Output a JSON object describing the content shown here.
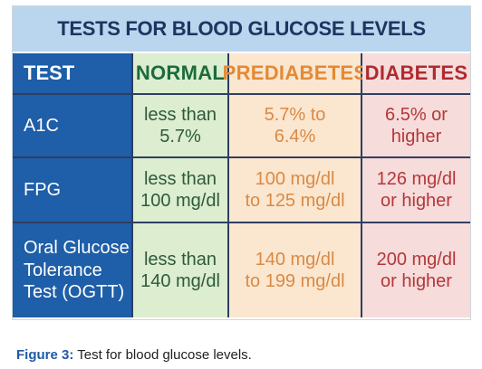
{
  "table": {
    "title": "TESTS FOR BLOOD GLUCOSE LEVELS",
    "headers": {
      "test": "TEST",
      "normal": "NORMAL",
      "prediabetes": "PREDIABETES",
      "diabetes": "DIABETES"
    },
    "rows": [
      {
        "test": [
          "A1C"
        ],
        "normal": [
          "less than",
          "5.7%"
        ],
        "prediabetes": [
          "5.7% to",
          "6.4%"
        ],
        "diabetes": [
          "6.5% or",
          "higher"
        ]
      },
      {
        "test": [
          "FPG"
        ],
        "normal": [
          "less than",
          "100 mg/dl"
        ],
        "prediabetes": [
          "100 mg/dl",
          "to 125 mg/dl"
        ],
        "diabetes": [
          "126 mg/dl",
          "or higher"
        ]
      },
      {
        "test": [
          "Oral Glucose",
          "Tolerance",
          "Test (OGTT)"
        ],
        "normal": [
          "less than",
          "140 mg/dl"
        ],
        "prediabetes": [
          "140 mg/dl",
          "to 199 mg/dl"
        ],
        "diabetes": [
          "200 mg/dl",
          "or higher"
        ]
      }
    ]
  },
  "caption": {
    "label": "Figure 3:",
    "text": " Test for blood glucose levels."
  },
  "colors": {
    "title_bg": "#b9d6ee",
    "title_text": "#1d3560",
    "label_bg": "#1f5ea8",
    "normal_bg": "#dcedd0",
    "normal_head": "#1c6b3a",
    "normal_text": "#2f5a3a",
    "prediabetes_bg": "#fbe6cf",
    "prediabetes_head": "#e38a34",
    "prediabetes_text": "#d98a45",
    "diabetes_bg": "#f6dcdb",
    "diabetes_head": "#b02a30",
    "diabetes_text": "#b5373a",
    "grid_line": "#2f3e63",
    "caption_label": "#1f5aa8"
  }
}
